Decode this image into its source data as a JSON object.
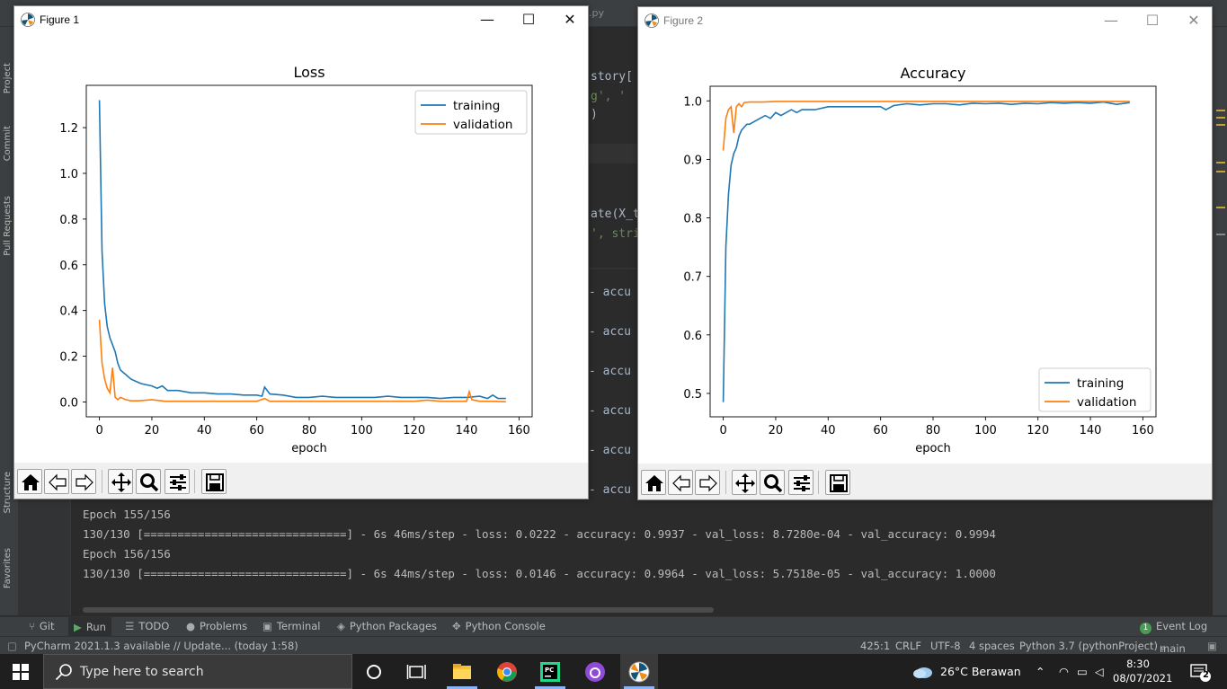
{
  "ide": {
    "ghost_tab": ".py",
    "left_tools": [
      "Project",
      "Commit",
      "Pull Requests",
      "Structure",
      "Favorites"
    ],
    "code_fragments": [
      "story[",
      "g', '",
      ")",
      "ate(X_te",
      "', stri"
    ],
    "console_prefix": "- accu",
    "console_lines": [
      "Epoch 155/156",
      "130/130 [==============================] - 6s 46ms/step - loss: 0.0222 - accuracy: 0.9937 - val_loss: 8.7280e-04 - val_accuracy: 0.9994",
      "Epoch 156/156",
      "130/130 [==============================] - 6s 44ms/step - loss: 0.0146 - accuracy: 0.9964 - val_loss: 5.7518e-05 - val_accuracy: 1.0000"
    ],
    "tool_windows": [
      {
        "label": "Git",
        "icon": "branch-icon"
      },
      {
        "label": "Run",
        "icon": "run-icon"
      },
      {
        "label": "TODO",
        "icon": "list-icon"
      },
      {
        "label": "Problems",
        "icon": "info-icon"
      },
      {
        "label": "Terminal",
        "icon": "terminal-icon"
      },
      {
        "label": "Python Packages",
        "icon": "layers-icon"
      },
      {
        "label": "Python Console",
        "icon": "python-icon"
      }
    ],
    "event_log": {
      "label": "Event Log",
      "badge": "1"
    },
    "status": {
      "update_msg": "PyCharm 2021.1.3 available // Update... (today 1:58)",
      "position": "425:1",
      "line_sep": "CRLF",
      "encoding": "UTF-8",
      "indent": "4 spaces",
      "interpreter": "Python 3.7 (pythonProject)",
      "branch": "main"
    }
  },
  "figure1": {
    "window_title": "Figure 1",
    "chart_data": {
      "type": "line",
      "title": "Loss",
      "xlabel": "epoch",
      "ylabel": "",
      "xlim": [
        -5,
        165
      ],
      "ylim": [
        -0.065,
        1.385
      ],
      "xticks": [
        0,
        20,
        40,
        60,
        80,
        100,
        120,
        140,
        160
      ],
      "yticks": [
        0.0,
        0.2,
        0.4,
        0.6,
        0.8,
        1.0,
        1.2
      ],
      "ytick_labels": [
        "0.0",
        "0.2",
        "0.4",
        "0.6",
        "0.8",
        "1.0",
        "1.2"
      ],
      "legend_position": "upper right",
      "grid": false,
      "series": [
        {
          "name": "training",
          "color": "#1f77b4",
          "x": [
            0,
            1,
            2,
            3,
            4,
            5,
            6,
            7,
            8,
            9,
            10,
            12,
            14,
            16,
            18,
            20,
            22,
            24,
            26,
            28,
            30,
            35,
            40,
            45,
            50,
            55,
            60,
            62,
            63,
            65,
            70,
            75,
            80,
            85,
            90,
            95,
            100,
            105,
            110,
            115,
            120,
            125,
            130,
            135,
            140,
            145,
            148,
            150,
            152,
            155
          ],
          "y": [
            1.32,
            0.66,
            0.43,
            0.33,
            0.28,
            0.25,
            0.22,
            0.17,
            0.14,
            0.13,
            0.12,
            0.1,
            0.09,
            0.08,
            0.075,
            0.07,
            0.06,
            0.07,
            0.05,
            0.05,
            0.05,
            0.04,
            0.04,
            0.035,
            0.035,
            0.03,
            0.03,
            0.025,
            0.065,
            0.035,
            0.03,
            0.02,
            0.02,
            0.025,
            0.02,
            0.02,
            0.02,
            0.02,
            0.025,
            0.02,
            0.02,
            0.02,
            0.015,
            0.02,
            0.02,
            0.025,
            0.015,
            0.03,
            0.015,
            0.015
          ]
        },
        {
          "name": "validation",
          "color": "#ff7f0e",
          "x": [
            0,
            1,
            2,
            3,
            4,
            5,
            6,
            7,
            8,
            10,
            12,
            15,
            20,
            25,
            30,
            40,
            50,
            60,
            63,
            65,
            70,
            80,
            90,
            100,
            110,
            120,
            125,
            130,
            135,
            140,
            141,
            142,
            145,
            150,
            155
          ],
          "y": [
            0.36,
            0.17,
            0.1,
            0.06,
            0.04,
            0.15,
            0.02,
            0.01,
            0.02,
            0.01,
            0.005,
            0.005,
            0.01,
            0.003,
            0.003,
            0.003,
            0.003,
            0.003,
            0.015,
            0.003,
            0.003,
            0.003,
            0.003,
            0.003,
            0.003,
            0.003,
            0.008,
            0.003,
            0.003,
            0.003,
            0.045,
            0.01,
            0.003,
            0.003,
            0.001
          ]
        }
      ]
    }
  },
  "figure2": {
    "window_title": "Figure 2",
    "chart_data": {
      "type": "line",
      "title": "Accuracy",
      "xlabel": "epoch",
      "ylabel": "",
      "xlim": [
        -5,
        165
      ],
      "ylim": [
        0.46,
        1.025
      ],
      "xticks": [
        0,
        20,
        40,
        60,
        80,
        100,
        120,
        140,
        160
      ],
      "yticks": [
        0.5,
        0.6,
        0.7,
        0.8,
        0.9,
        1.0
      ],
      "ytick_labels": [
        "0.5",
        "0.6",
        "0.7",
        "0.8",
        "0.9",
        "1.0"
      ],
      "legend_position": "lower right",
      "grid": false,
      "series": [
        {
          "name": "training",
          "color": "#1f77b4",
          "x": [
            0,
            1,
            2,
            3,
            4,
            5,
            6,
            7,
            8,
            9,
            10,
            12,
            14,
            16,
            18,
            20,
            22,
            24,
            26,
            28,
            30,
            35,
            40,
            45,
            50,
            55,
            60,
            62,
            65,
            70,
            75,
            80,
            85,
            90,
            95,
            100,
            105,
            110,
            115,
            120,
            125,
            130,
            135,
            140,
            145,
            150,
            155
          ],
          "y": [
            0.485,
            0.75,
            0.84,
            0.89,
            0.91,
            0.92,
            0.94,
            0.95,
            0.955,
            0.96,
            0.96,
            0.965,
            0.97,
            0.975,
            0.97,
            0.98,
            0.975,
            0.98,
            0.985,
            0.98,
            0.985,
            0.985,
            0.99,
            0.99,
            0.99,
            0.99,
            0.99,
            0.985,
            0.992,
            0.995,
            0.993,
            0.995,
            0.995,
            0.993,
            0.996,
            0.995,
            0.996,
            0.994,
            0.996,
            0.995,
            0.997,
            0.996,
            0.997,
            0.996,
            0.998,
            0.994,
            0.997
          ]
        },
        {
          "name": "validation",
          "color": "#ff7f0e",
          "x": [
            0,
            1,
            2,
            3,
            4,
            5,
            6,
            7,
            8,
            10,
            15,
            20,
            30,
            40,
            50,
            60,
            70,
            80,
            90,
            100,
            110,
            120,
            130,
            140,
            150,
            155
          ],
          "y": [
            0.915,
            0.97,
            0.985,
            0.99,
            0.945,
            0.99,
            0.995,
            0.99,
            0.997,
            0.998,
            0.998,
            0.999,
            0.999,
            0.999,
            0.999,
            0.999,
            0.999,
            0.999,
            0.999,
            0.999,
            0.999,
            0.999,
            0.999,
            0.999,
            0.999,
            0.999
          ]
        }
      ]
    }
  },
  "taskbar": {
    "search_placeholder": "Type here to search",
    "weather": "26°C  Berawan",
    "time": "8:30",
    "date": "08/07/2021",
    "notifications": "2"
  }
}
